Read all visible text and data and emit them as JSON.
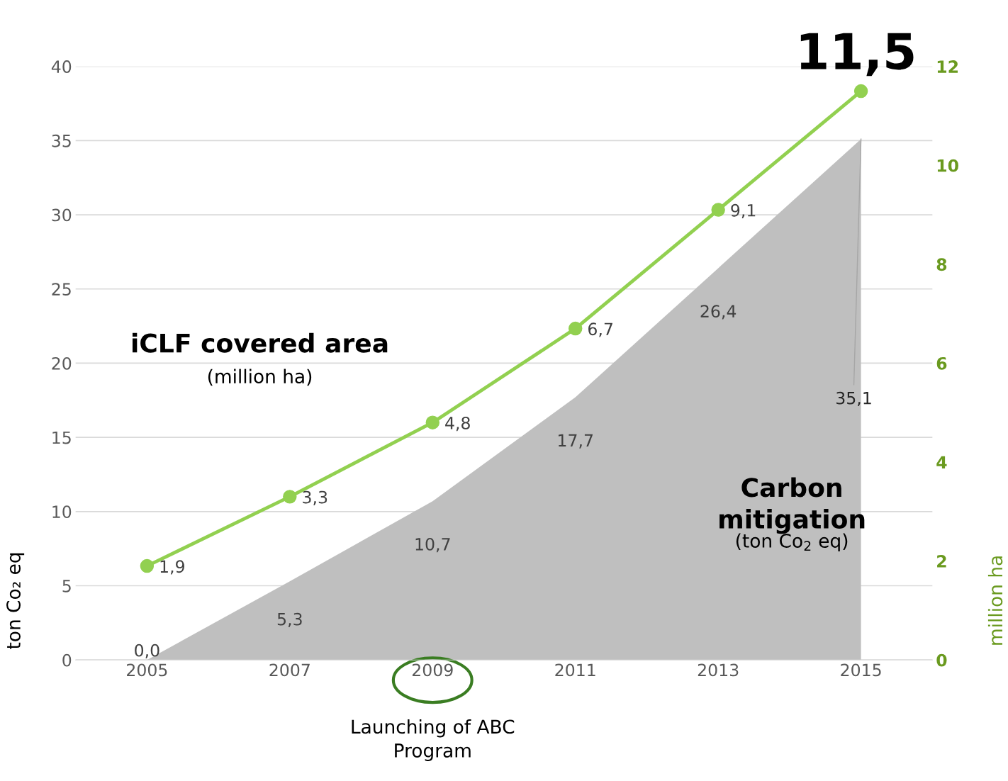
{
  "chart_data": {
    "type": "area",
    "categories": [
      "2005",
      "2007",
      "2009",
      "2011",
      "2013",
      "2015"
    ],
    "ylabel": "ton Co₂ eq",
    "y2label": "million ha",
    "ylim": [
      0,
      40
    ],
    "yticks": [
      0,
      5,
      10,
      15,
      20,
      25,
      30,
      35,
      40
    ],
    "y2lim": [
      0,
      12
    ],
    "y2ticks": [
      0,
      2,
      4,
      6,
      8,
      10,
      12
    ],
    "grid": "y",
    "legend": false,
    "series": [
      {
        "color": "#bfbfbf",
        "values": [
          0.0,
          5.3,
          10.7,
          17.7,
          26.4,
          35.1
        ],
        "value_labels": [
          "0,0",
          "5,3",
          "10,7",
          "17,7",
          "26,4",
          "35,1"
        ]
      },
      {
        "type": "line",
        "axis": "y2",
        "color": "#92d050",
        "marker": "circle",
        "line_style": "solid",
        "values": [
          1.9,
          3.3,
          4.8,
          6.7,
          9.1,
          11.5
        ],
        "value_labels": [
          "1,9",
          "3,3",
          "4,8",
          "6,7",
          "9,1",
          "11,5"
        ]
      }
    ],
    "annotations": [
      "iCLF covered area",
      "(million ha)",
      "Carbon mitigation",
      "(ton Co$_{2}$ eq)",
      "Launching of ABC Program"
    ]
  }
}
